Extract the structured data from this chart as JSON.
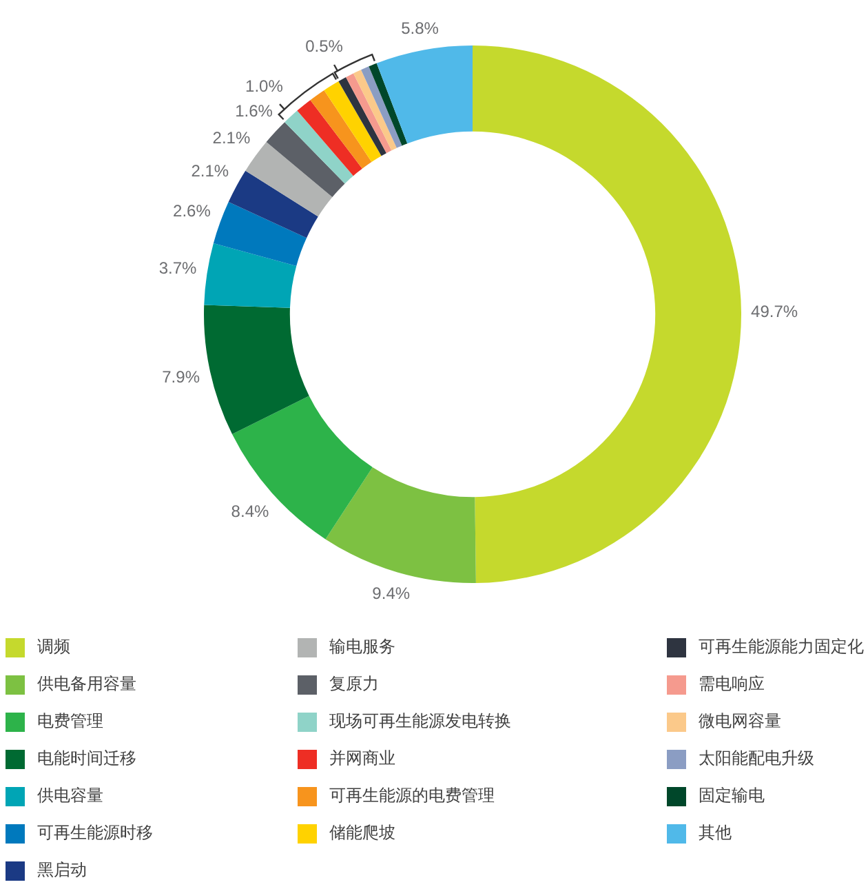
{
  "chart_data": {
    "type": "donut",
    "categories": [
      "调频",
      "供电备用容量",
      "电费管理",
      "电能时间迁移",
      "供电容量",
      "可再生能源时移",
      "黑启动",
      "输电服务",
      "复原力",
      "现场可再生能源发电转换",
      "并网商业",
      "可再生能源的电费管理",
      "储能爬坡",
      "可再生能源能力固定化",
      "需电响应",
      "微电网容量",
      "太阳能配电升级",
      "固定输电",
      "其他"
    ],
    "values": [
      49.7,
      9.4,
      8.4,
      7.9,
      3.7,
      2.6,
      2.1,
      2.1,
      1.6,
      1.0,
      1.0,
      1.0,
      1.0,
      0.5,
      0.5,
      0.5,
      0.5,
      0.5,
      5.8
    ],
    "colors": [
      "#c5d92d",
      "#7dc142",
      "#2db34a",
      "#006a32",
      "#00a5b5",
      "#0079bd",
      "#1b3a84",
      "#b2b4b3",
      "#5c6067",
      "#8fd3c8",
      "#ee2e24",
      "#f7941d",
      "#ffd200",
      "#2e3440",
      "#f59a8e",
      "#fbc98a",
      "#8b9dc3",
      "#00472a",
      "#50b9e9"
    ],
    "value_labels": [
      "49.7%",
      "9.4%",
      "8.4%",
      "7.9%",
      "3.7%",
      "2.6%",
      "2.1%",
      "2.1%",
      "1.6%",
      "1.0%",
      null,
      null,
      null,
      "0.5%",
      null,
      null,
      null,
      null,
      "5.8%"
    ],
    "legend": "bottom"
  }
}
